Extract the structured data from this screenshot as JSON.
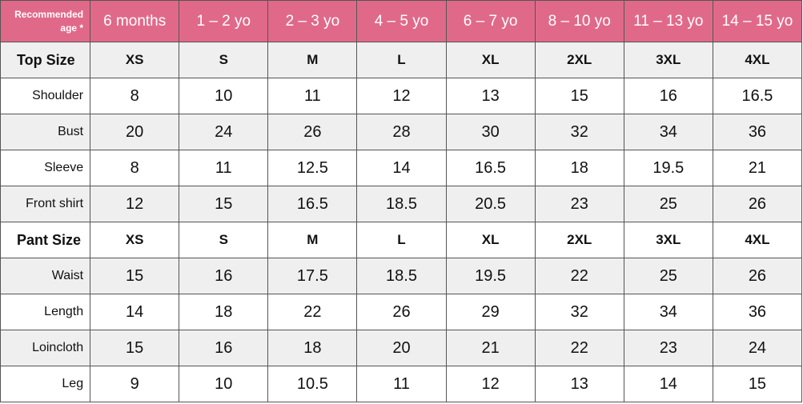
{
  "table": {
    "corner": "Recommended age *",
    "ages": [
      "6 months",
      "1 – 2 yo",
      "2 – 3 yo",
      "4 – 5 yo",
      "6 – 7 yo",
      "8 – 10 yo",
      "11 – 13 yo",
      "14 – 15 yo"
    ],
    "sections": [
      {
        "title": "Top Size",
        "sizes": [
          "XS",
          "S",
          "M",
          "L",
          "XL",
          "2XL",
          "3XL",
          "4XL"
        ],
        "rows": [
          {
            "label": "Shoulder",
            "values": [
              8,
              10,
              11,
              12,
              13,
              15,
              16,
              16.5
            ]
          },
          {
            "label": "Bust",
            "values": [
              20,
              24,
              26,
              28,
              30,
              32,
              34,
              36
            ]
          },
          {
            "label": "Sleeve",
            "values": [
              8,
              11,
              12.5,
              14,
              16.5,
              18,
              19.5,
              21
            ]
          },
          {
            "label": "Front shirt",
            "values": [
              12,
              15,
              16.5,
              18.5,
              20.5,
              23,
              25,
              26
            ]
          }
        ]
      },
      {
        "title": "Pant Size",
        "sizes": [
          "XS",
          "S",
          "M",
          "L",
          "XL",
          "2XL",
          "3XL",
          "4XL"
        ],
        "rows": [
          {
            "label": "Waist",
            "values": [
              15,
              16,
              17.5,
              18.5,
              19.5,
              22,
              25,
              26
            ]
          },
          {
            "label": "Length",
            "values": [
              14,
              18,
              22,
              26,
              29,
              32,
              34,
              36
            ]
          },
          {
            "label": "Loincloth",
            "values": [
              15,
              16,
              18,
              20,
              21,
              22,
              23,
              24
            ]
          },
          {
            "label": "Leg",
            "values": [
              9,
              10,
              10.5,
              11,
              12,
              13,
              14,
              15
            ]
          }
        ]
      }
    ]
  }
}
